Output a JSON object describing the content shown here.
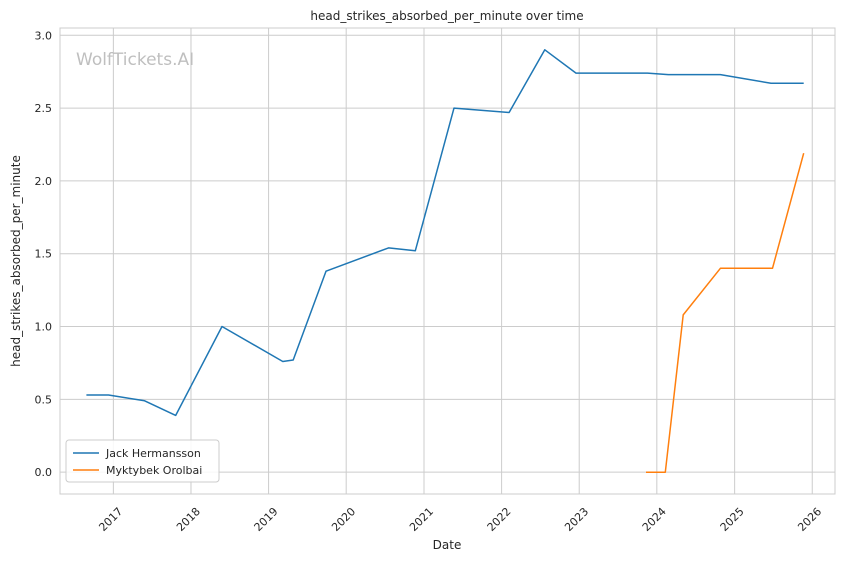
{
  "watermark": "WolfTickets.AI",
  "chart_data": {
    "type": "line",
    "title": "head_strikes_absorbed_per_minute over time",
    "xlabel": "Date",
    "ylabel": "head_strikes_absorbed_per_minute",
    "xlim": [
      "2016-04-25",
      "2026-04-18"
    ],
    "ylim": [
      -0.15,
      3.05
    ],
    "x_ticks": [
      "2017-01-01",
      "2018-01-01",
      "2019-01-01",
      "2020-01-01",
      "2021-01-01",
      "2022-01-01",
      "2023-01-01",
      "2024-01-01",
      "2025-01-01",
      "2026-01-01"
    ],
    "x_tick_labels": [
      "2017",
      "2018",
      "2019",
      "2020",
      "2021",
      "2022",
      "2023",
      "2024",
      "2025",
      "2026"
    ],
    "y_ticks": [
      0.0,
      0.5,
      1.0,
      1.5,
      2.0,
      2.5,
      3.0
    ],
    "y_tick_labels": [
      "0.0",
      "0.5",
      "1.0",
      "1.5",
      "2.0",
      "2.5",
      "3.0"
    ],
    "grid": true,
    "legend_position": "lower-left",
    "series": [
      {
        "name": "Jack Hermansson",
        "color": "#1f77b4",
        "points": [
          [
            "2016-08-27",
            0.53
          ],
          [
            "2016-12-09",
            0.53
          ],
          [
            "2017-05-28",
            0.49
          ],
          [
            "2017-10-21",
            0.39
          ],
          [
            "2018-05-27",
            1.0
          ],
          [
            "2019-03-09",
            0.76
          ],
          [
            "2019-04-27",
            0.77
          ],
          [
            "2019-09-28",
            1.38
          ],
          [
            "2020-07-18",
            1.54
          ],
          [
            "2020-11-21",
            1.52
          ],
          [
            "2021-05-22",
            2.5
          ],
          [
            "2022-02-05",
            2.47
          ],
          [
            "2022-07-23",
            2.9
          ],
          [
            "2022-12-17",
            2.74
          ],
          [
            "2023-11-18",
            2.74
          ],
          [
            "2024-02-24",
            2.73
          ],
          [
            "2024-10-26",
            2.73
          ],
          [
            "2025-06-21",
            2.67
          ],
          [
            "2025-11-22",
            2.67
          ]
        ]
      },
      {
        "name": "Myktybek Orolbai",
        "color": "#ff7f0e",
        "points": [
          [
            "2023-11-11",
            0.0
          ],
          [
            "2024-02-10",
            0.0
          ],
          [
            "2024-05-04",
            1.08
          ],
          [
            "2024-10-26",
            1.4
          ],
          [
            "2025-06-28",
            1.4
          ],
          [
            "2025-11-22",
            2.19
          ]
        ]
      }
    ]
  }
}
